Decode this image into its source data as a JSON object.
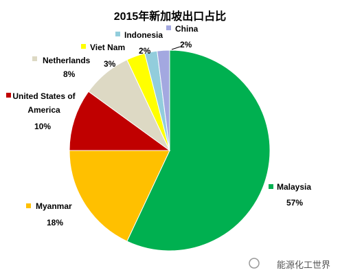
{
  "chart_data": {
    "type": "pie",
    "title": "2015年新加坡出口占比",
    "categories": [
      "Malaysia",
      "Myanmar",
      "United States of America",
      "Netherlands",
      "Viet Nam",
      "Indonesia",
      "China"
    ],
    "values": [
      57,
      18,
      10,
      8,
      3,
      2,
      2
    ],
    "value_labels": [
      "57%",
      "18%",
      "10%",
      "8%",
      "3%",
      "2%",
      "2%"
    ],
    "colors": [
      "#00b050",
      "#ffc000",
      "#c00000",
      "#ddd9c4",
      "#ffff00",
      "#92cddc",
      "#a3a8e0"
    ],
    "watermark": "能源化工世界"
  }
}
